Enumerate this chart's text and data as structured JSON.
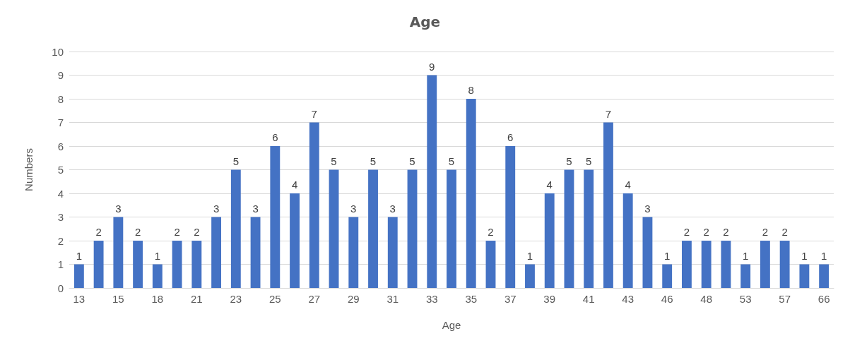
{
  "chart_data": {
    "type": "bar",
    "title": "Age",
    "xlabel": "Age",
    "ylabel": "Numbers",
    "categories": [
      "13",
      null,
      "15",
      null,
      "18",
      null,
      "21",
      null,
      "23",
      null,
      "25",
      null,
      "27",
      null,
      "29",
      null,
      "31",
      null,
      "33",
      null,
      "35",
      null,
      "37",
      null,
      "39",
      null,
      "41",
      null,
      "43",
      null,
      "46",
      null,
      "48",
      null,
      "53",
      null,
      "57",
      null,
      "66"
    ],
    "values": [
      1,
      2,
      3,
      2,
      1,
      2,
      2,
      3,
      5,
      3,
      6,
      4,
      7,
      5,
      3,
      5,
      3,
      5,
      9,
      5,
      8,
      2,
      6,
      1,
      4,
      5,
      5,
      7,
      4,
      3,
      1,
      2,
      2,
      2,
      1,
      2,
      2,
      1,
      1
    ],
    "color": "#4472c4",
    "ylim": [
      0,
      10
    ],
    "yticks": [
      0,
      1,
      2,
      3,
      4,
      5,
      6,
      7,
      8,
      9,
      10
    ],
    "grid": "y",
    "data_labels": true
  }
}
